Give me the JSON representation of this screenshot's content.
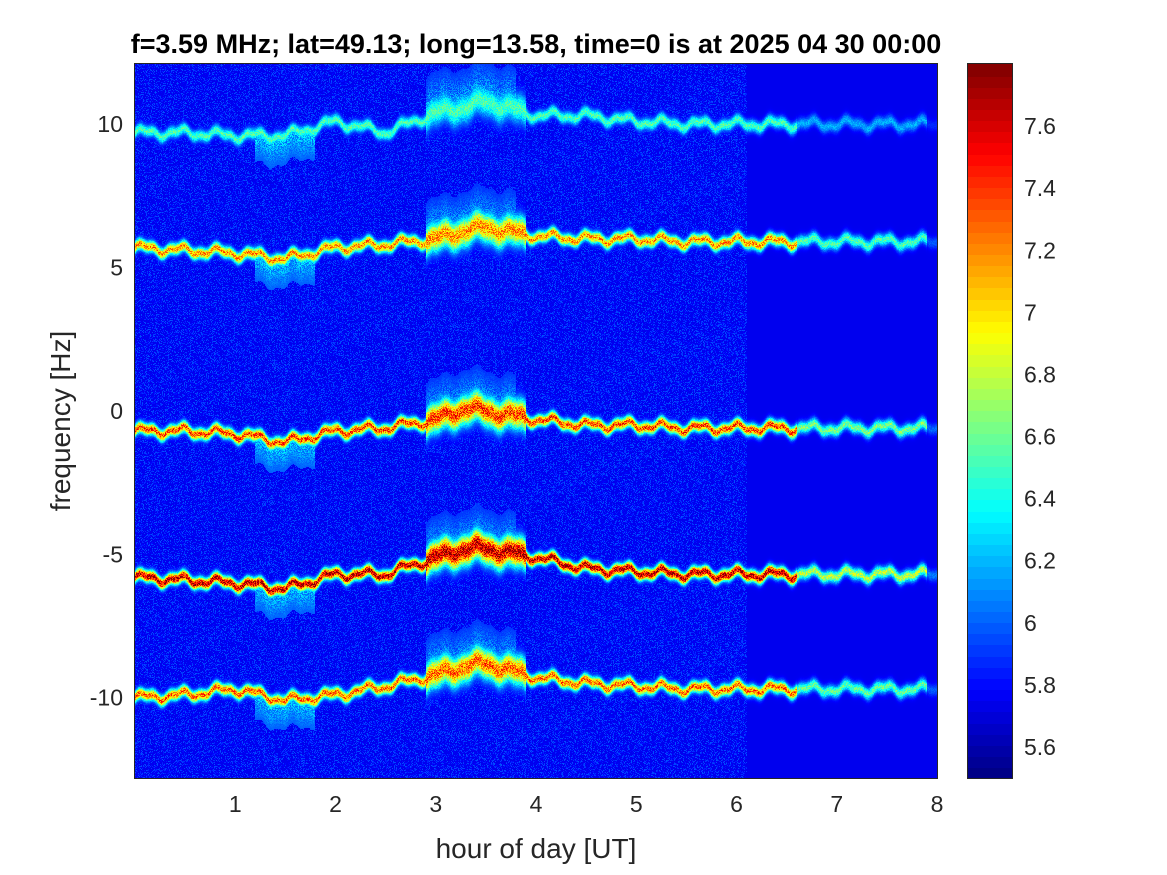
{
  "chart_data": {
    "type": "heatmap",
    "title": "f=3.59 MHz;  lat=49.13; long=13.58, time=0 is at 2025 04 30 00:00",
    "xlabel": "hour of day [UT]",
    "ylabel": "frequency [Hz]",
    "xlim": [
      0,
      8
    ],
    "ylim": [
      -12.8,
      12.1
    ],
    "x_ticks": [
      1,
      2,
      3,
      4,
      5,
      6,
      7,
      8
    ],
    "y_ticks": [
      -10,
      -5,
      0,
      5,
      10
    ],
    "x_tick_labels": [
      "1",
      "2",
      "3",
      "4",
      "5",
      "6",
      "7",
      "8"
    ],
    "y_tick_labels": [
      "-10",
      "-5",
      "0",
      "5",
      "10"
    ],
    "colormap": "jet",
    "color_range": [
      5.5,
      7.8
    ],
    "colorbar_ticks": [
      5.6,
      5.8,
      6,
      6.2,
      6.4,
      6.6,
      6.8,
      7,
      7.2,
      7.4,
      7.6
    ],
    "colorbar_tick_labels": [
      "5.6",
      "5.8",
      "6",
      "6.2",
      "6.4",
      "6.6",
      "6.8",
      "7",
      "7.2",
      "7.4",
      "7.6"
    ],
    "background_level": 5.75,
    "quiet_background_after_hour": 6.1,
    "signal_traces": [
      {
        "hours": [
          0,
          0.5,
          1.0,
          1.5,
          2.0,
          2.5,
          3.0,
          3.3,
          3.5,
          4.0,
          4.5,
          5.0,
          5.5,
          6.0,
          7.0,
          8.0
        ],
        "frequency_hz": [
          -10.0,
          -9.9,
          -9.7,
          -10.1,
          -9.9,
          -9.6,
          -9.2,
          -8.9,
          -8.8,
          -9.3,
          -9.5,
          -9.6,
          -9.7,
          -9.7,
          -9.7,
          -9.7
        ],
        "peak_level": 7.4
      },
      {
        "hours": [
          0,
          0.5,
          1.0,
          1.5,
          2.0,
          2.5,
          3.0,
          3.3,
          3.5,
          4.0,
          4.5,
          5.0,
          5.5,
          6.0,
          7.0,
          8.0
        ],
        "frequency_hz": [
          -5.8,
          -5.9,
          -6.0,
          -6.2,
          -5.7,
          -5.7,
          -5.1,
          -4.8,
          -4.8,
          -5.1,
          -5.5,
          -5.6,
          -5.7,
          -5.7,
          -5.7,
          -5.7
        ],
        "peak_level": 7.8
      },
      {
        "hours": [
          0,
          0.5,
          1.0,
          1.5,
          2.0,
          2.5,
          3.0,
          3.3,
          3.5,
          4.0,
          4.5,
          5.0,
          5.5,
          6.0,
          7.0,
          8.0
        ],
        "frequency_hz": [
          -0.7,
          -0.7,
          -0.8,
          -1.1,
          -0.7,
          -0.6,
          -0.3,
          0.1,
          0.0,
          -0.3,
          -0.5,
          -0.5,
          -0.6,
          -0.6,
          -0.6,
          -0.6
        ],
        "peak_level": 7.5
      },
      {
        "hours": [
          0,
          0.5,
          1.0,
          1.5,
          2.0,
          2.5,
          3.0,
          3.3,
          3.5,
          4.0,
          4.5,
          5.0,
          5.5,
          6.0,
          7.0,
          8.0
        ],
        "frequency_hz": [
          5.7,
          5.6,
          5.5,
          5.3,
          5.7,
          5.8,
          6.0,
          6.3,
          6.4,
          6.1,
          6.0,
          6.0,
          5.9,
          5.9,
          5.9,
          5.9
        ],
        "peak_level": 7.3
      },
      {
        "hours": [
          0,
          0.5,
          1.0,
          1.5,
          2.0,
          2.5,
          3.0,
          3.3,
          3.5,
          4.0,
          4.5,
          5.0,
          5.5,
          6.0,
          7.0,
          8.0
        ],
        "frequency_hz": [
          9.7,
          9.7,
          9.6,
          9.6,
          10.1,
          9.7,
          10.4,
          10.6,
          10.8,
          10.3,
          10.3,
          10.1,
          10.0,
          10.0,
          10.0,
          10.0
        ],
        "peak_level": 6.6
      }
    ]
  },
  "colors": {
    "axis": "#262626",
    "title": "#000000",
    "background": "#ffffff"
  }
}
